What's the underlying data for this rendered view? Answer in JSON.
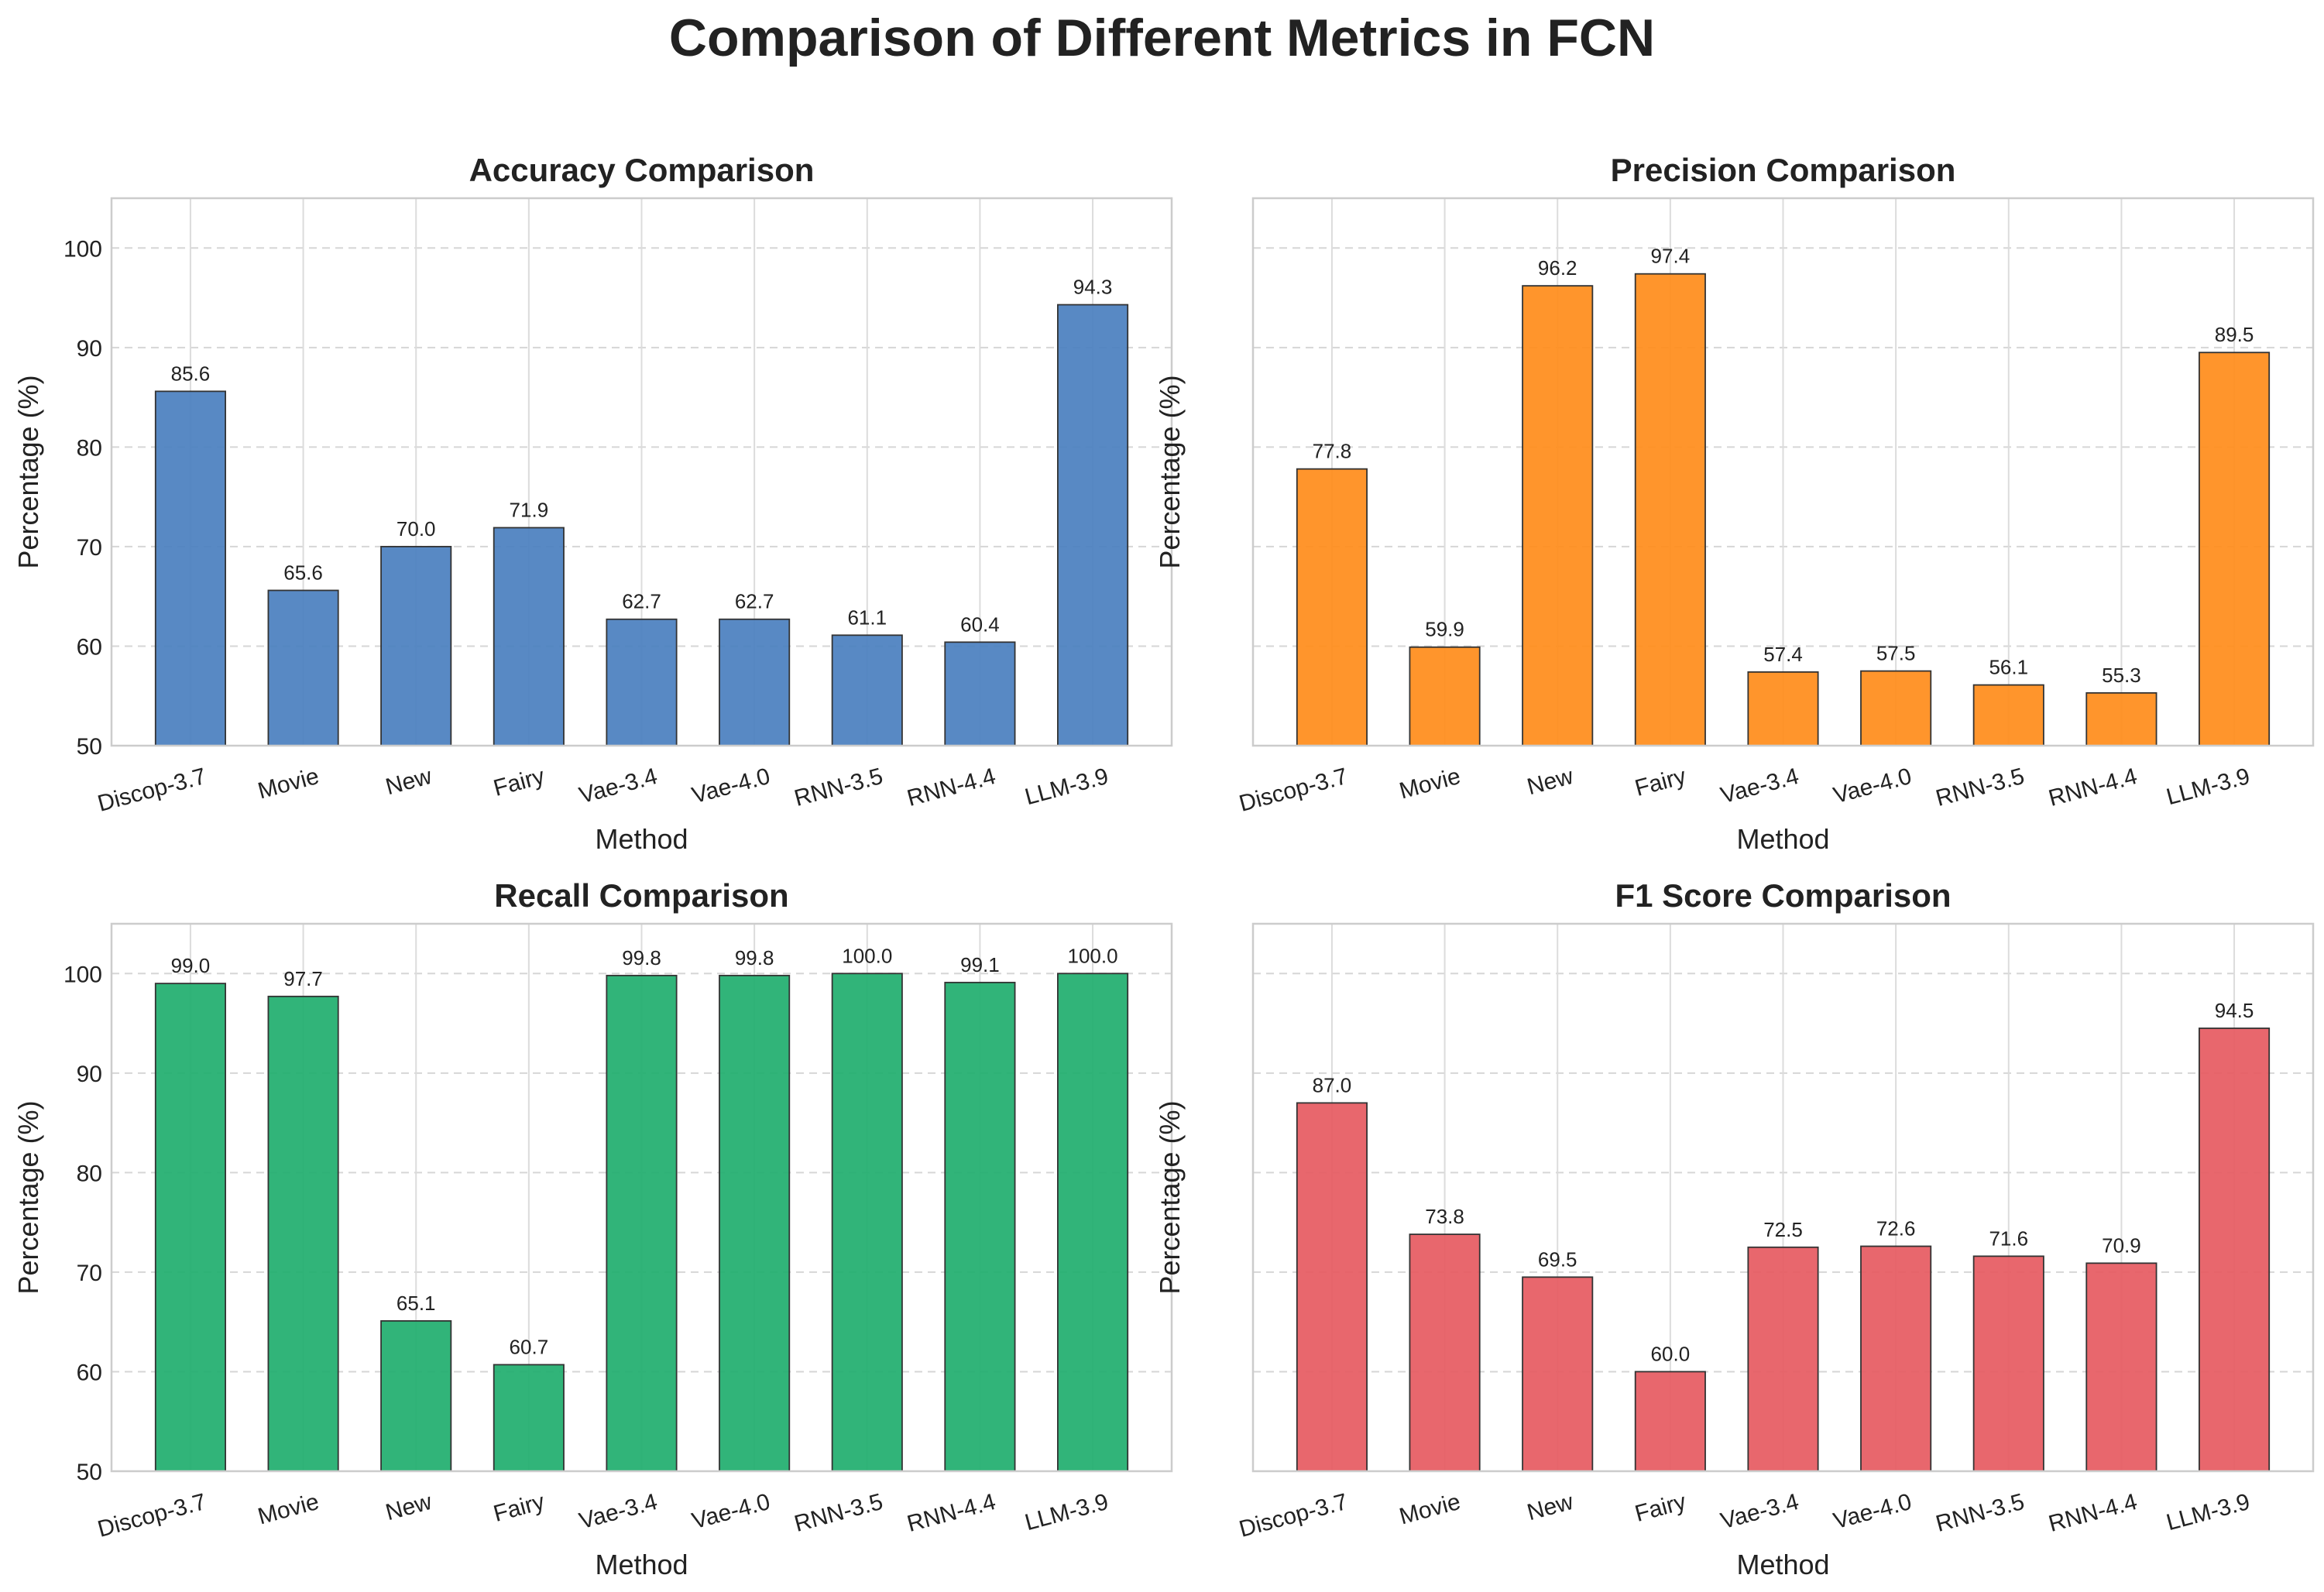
{
  "title": "Comparison of Different Metrics in FCN",
  "chart_data": [
    {
      "type": "bar",
      "title": "Accuracy Comparison",
      "xlabel": "Method",
      "ylabel": "Percentage (%)",
      "ylim": [
        50,
        105
      ],
      "yticks": [
        50,
        60,
        70,
        80,
        90,
        100
      ],
      "show_ytick_labels": true,
      "grid": true,
      "color": "#4a7fbf",
      "categories": [
        "Discop-3.7",
        "Movie",
        "New",
        "Fairy",
        "Vae-3.4",
        "Vae-4.0",
        "RNN-3.5",
        "RNN-4.4",
        "LLM-3.9"
      ],
      "values": [
        85.6,
        65.6,
        70.0,
        71.9,
        62.7,
        62.7,
        61.1,
        60.4,
        94.3
      ],
      "value_labels": [
        "85.6",
        "65.6",
        "70.0",
        "71.9",
        "62.7",
        "62.7",
        "61.1",
        "60.4",
        "94.3"
      ]
    },
    {
      "type": "bar",
      "title": "Precision Comparison",
      "xlabel": "Method",
      "ylabel": "Percentage (%)",
      "ylim": [
        50,
        105
      ],
      "yticks": [
        50,
        60,
        70,
        80,
        90,
        100
      ],
      "show_ytick_labels": false,
      "grid": true,
      "color": "#ff8c1a",
      "categories": [
        "Discop-3.7",
        "Movie",
        "New",
        "Fairy",
        "Vae-3.4",
        "Vae-4.0",
        "RNN-3.5",
        "RNN-4.4",
        "LLM-3.9"
      ],
      "values": [
        77.8,
        59.9,
        96.2,
        97.4,
        57.4,
        57.5,
        56.1,
        55.3,
        89.5
      ],
      "value_labels": [
        "77.8",
        "59.9",
        "96.2",
        "97.4",
        "57.4",
        "57.5",
        "56.1",
        "55.3",
        "89.5"
      ]
    },
    {
      "type": "bar",
      "title": "Recall Comparison",
      "xlabel": "Method",
      "ylabel": "Percentage (%)",
      "ylim": [
        50,
        105
      ],
      "yticks": [
        50,
        60,
        70,
        80,
        90,
        100
      ],
      "show_ytick_labels": true,
      "grid": true,
      "color": "#1fae6e",
      "categories": [
        "Discop-3.7",
        "Movie",
        "New",
        "Fairy",
        "Vae-3.4",
        "Vae-4.0",
        "RNN-3.5",
        "RNN-4.4",
        "LLM-3.9"
      ],
      "values": [
        99.0,
        97.7,
        65.1,
        60.7,
        99.8,
        99.8,
        100.0,
        99.1,
        100.0
      ],
      "value_labels": [
        "99.0",
        "97.7",
        "65.1",
        "60.7",
        "99.8",
        "99.8",
        "100.0",
        "99.1",
        "100.0"
      ]
    },
    {
      "type": "bar",
      "title": "F1 Score Comparison",
      "xlabel": "Method",
      "ylabel": "Percentage (%)",
      "ylim": [
        50,
        105
      ],
      "yticks": [
        50,
        60,
        70,
        80,
        90,
        100
      ],
      "show_ytick_labels": false,
      "grid": true,
      "color": "#e65a61",
      "categories": [
        "Discop-3.7",
        "Movie",
        "New",
        "Fairy",
        "Vae-3.4",
        "Vae-4.0",
        "RNN-3.5",
        "RNN-4.4",
        "LLM-3.9"
      ],
      "values": [
        87.0,
        73.8,
        69.5,
        60.0,
        72.5,
        72.6,
        71.6,
        70.9,
        94.5
      ],
      "value_labels": [
        "87.0",
        "73.8",
        "69.5",
        "60.0",
        "72.5",
        "72.6",
        "71.6",
        "70.9",
        "94.5"
      ]
    }
  ]
}
